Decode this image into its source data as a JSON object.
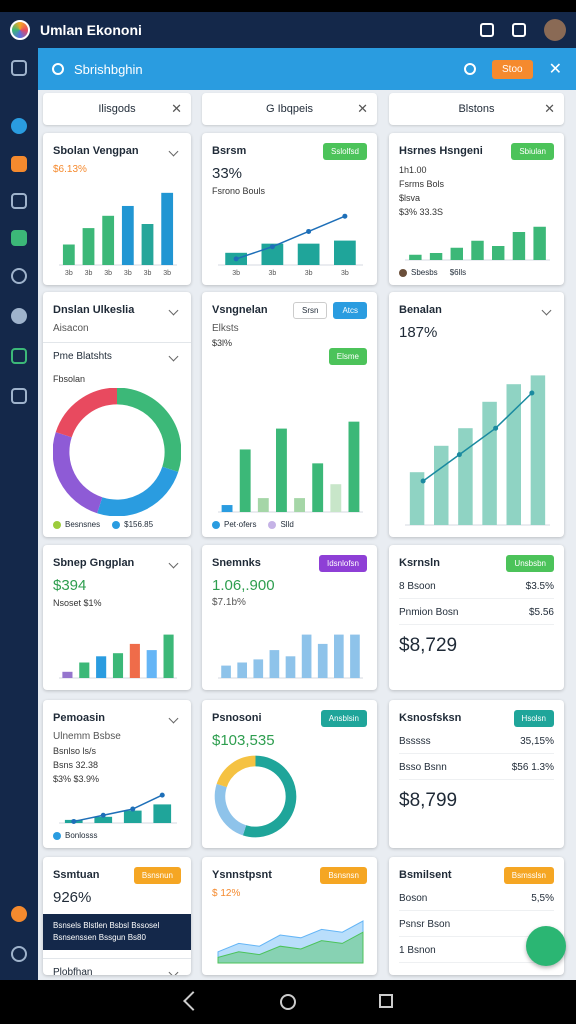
{
  "app_bar": {
    "title": "Umlan Ekononi"
  },
  "search": {
    "placeholder": "Sbrishbghin",
    "button": "Stoo"
  },
  "tabs": [
    "Ilisgods",
    "G Ibqpeis",
    "Blstons"
  ],
  "cards": [
    {
      "title": "Sbolan Vengpan",
      "subtitle": "$6.13%",
      "subtitle_color": "#f58a2e",
      "chart": {
        "type": "bar",
        "ylim": [
          0,
          100
        ],
        "categories": [
          "3b",
          "3b",
          "3b",
          "3b",
          "3b",
          "3b"
        ],
        "values": [
          25,
          45,
          60,
          72,
          50,
          88
        ],
        "colors": [
          "#3cb878",
          "#3cb878",
          "#3cb878",
          "#2196d3",
          "#26a69a",
          "#2196d3"
        ]
      }
    },
    {
      "title": "Bsrsm",
      "badge": "Sslolfsd",
      "badge_color": "#4cc35a",
      "value": "33%",
      "notes": [
        "Fsrono Bouls"
      ],
      "chart": {
        "type": "bar",
        "ylim": [
          0,
          100
        ],
        "categories": [
          "3b",
          "3b",
          "3b",
          "3b"
        ],
        "values": [
          20,
          35,
          35,
          40
        ],
        "color": "#1fa59a",
        "line": [
          10,
          30,
          55,
          80
        ],
        "line_color": "#1e6fb8"
      }
    },
    {
      "title": "Hsrnes Hsngeni",
      "badge": "Sbiulan",
      "badge_color": "#4cc35a",
      "notes": [
        "1h1.00",
        "Fsrms Bols",
        "$lsva",
        "$3% 33.3S"
      ],
      "chart": {
        "type": "bar",
        "ylim": [
          0,
          100
        ],
        "values": [
          15,
          20,
          35,
          55,
          40,
          80,
          95
        ],
        "color": "#3cb878"
      },
      "legend": [
        {
          "name": "Sbesbs",
          "color": "#6b4f3a"
        },
        {
          "name": "$6lls"
        }
      ]
    },
    {
      "title": "Dnslan Ulkeslia",
      "subtitle": "Aisacon",
      "section": "Pme Blatshts",
      "notes": [
        "Fbsolan"
      ],
      "chart": {
        "type": "donut",
        "values": [
          30,
          25,
          25,
          20
        ],
        "colors": [
          "#3cb878",
          "#2a9ce0",
          "#8e5bd6",
          "#e84a5f"
        ]
      },
      "legend": [
        {
          "name": "Besnsnes",
          "color": "#9ccc3c"
        },
        {
          "name": "$156.85",
          "color": "#2a9ce0"
        }
      ]
    },
    {
      "title": "Vsngnelan",
      "buttons": [
        "Srsn",
        "Atcs"
      ],
      "subtitle": "Elksts",
      "notes": [
        "$3l%"
      ],
      "badge": "Elsme",
      "badge_color": "#4cc35a",
      "chart": {
        "type": "bar",
        "ylim": [
          0,
          100
        ],
        "values": [
          5,
          45,
          10,
          60,
          10,
          35,
          20,
          65
        ],
        "colors": [
          "#2a9ce0",
          "#3cb878",
          "#a5d6a7",
          "#3cb878",
          "#a5d6a7",
          "#3cb878",
          "#c8e6c9",
          "#3cb878"
        ]
      },
      "legend": [
        {
          "name": "Pet·ofers",
          "color": "#2a9ce0"
        },
        {
          "name": "Slld",
          "color": "#c5b3e6"
        }
      ]
    },
    {
      "title": "Benalan",
      "value": "187%",
      "chart": {
        "type": "bar",
        "ylim": [
          0,
          100
        ],
        "values": [
          30,
          45,
          55,
          70,
          80,
          85
        ],
        "color": "#8fd3c3",
        "line": [
          25,
          40,
          55,
          75
        ],
        "line_color": "#1a8aa0"
      }
    },
    {
      "title": "Sbnep Gngplan",
      "value": "$394",
      "value_color": "#2e9e4f",
      "notes": [
        "Nsoset $1%"
      ],
      "chart": {
        "type": "bar",
        "ylim": [
          0,
          100
        ],
        "values": [
          10,
          25,
          35,
          40,
          55,
          45,
          70
        ],
        "colors": [
          "#9575cd",
          "#3cb878",
          "#2a9ce0",
          "#3cb878",
          "#ef6c4a",
          "#64b5f6",
          "#3cb878"
        ]
      }
    },
    {
      "title": "Snemnks",
      "badge": "Idsnlofsn",
      "badge_color": "#8e3fd6",
      "value": "1.06,.900",
      "value_color": "#2e9e4f",
      "subtitle": "$7.1b%",
      "chart": {
        "type": "bar",
        "ylim": [
          0,
          100
        ],
        "values": [
          20,
          25,
          30,
          45,
          35,
          70,
          55,
          70,
          70
        ],
        "color": "#8ec3ea"
      }
    },
    {
      "title": "Ksrnsln",
      "badge": "Unsbsbn",
      "badge_color": "#4cc35a",
      "rows": [
        [
          "8 Bsoon",
          "$3.5%"
        ],
        [
          "Pnmion Bosn",
          "$5.56"
        ]
      ],
      "big": "$8,729"
    },
    {
      "title": "Pemoasin",
      "subtitle": "Ulnemm Bsbse",
      "notes": [
        "Bsnlso ls/s",
        "Bsns 32.38",
        "$3% $3.9%"
      ],
      "chart": {
        "type": "bar",
        "ylim": [
          0,
          100
        ],
        "values": [
          10,
          20,
          40,
          60
        ],
        "color": "#1fa59a",
        "line": [
          5,
          25,
          45,
          90
        ],
        "line_color": "#1e6fb8"
      },
      "legend": [
        {
          "name": "Bonlosss",
          "color": "#2a9ce0"
        }
      ]
    },
    {
      "title": "Psnosoni",
      "badge": "Ansblsin",
      "badge_color": "#1fa59a",
      "value": "$103,535",
      "value_color": "#2e9e4f",
      "chart": {
        "type": "donut",
        "values": [
          55,
          25,
          20
        ],
        "colors": [
          "#1fa59a",
          "#8ec3ea",
          "#f5c242"
        ]
      }
    },
    {
      "title": "Ksnosfsksn",
      "badge": "Hsolsn",
      "badge_color": "#1fa59a",
      "rows": [
        [
          "Bsssss",
          "35,15%"
        ],
        [
          "Bsso Bsnn",
          "$56 1.3%"
        ]
      ],
      "big": "$8,799"
    },
    {
      "title": "Ssmtuan",
      "badge": "Bsnsnun",
      "badge_color": "#f5a623",
      "value": "926%",
      "banner": "Bsnsels Blstlen Bsbsl Bssosel Bsnsenssen Bssgun Bs80",
      "section": "Plobfhan"
    },
    {
      "title": "Ysnnstpsnt",
      "badge": "Bsnsnsn",
      "badge_color": "#f5a623",
      "subtitle": "$ 12%",
      "subtitle_color": "#f58a2e",
      "chart": {
        "type": "area",
        "ylim": [
          0,
          100
        ],
        "series": [
          {
            "color": "#4cc35a",
            "values": [
              10,
              20,
              15,
              30,
              25,
              40,
              35,
              55
            ]
          },
          {
            "color": "#64b5f6",
            "values": [
              20,
              35,
              30,
              50,
              45,
              60,
              55,
              75
            ]
          }
        ]
      }
    },
    {
      "title": "Bsmilsent",
      "badge": "Bsmsslsn",
      "badge_color": "#f5a623",
      "rows": [
        [
          "Boson",
          "5,5%"
        ],
        [
          "Psnsr Bson"
        ],
        [
          "1 Bsnon"
        ]
      ]
    }
  ]
}
